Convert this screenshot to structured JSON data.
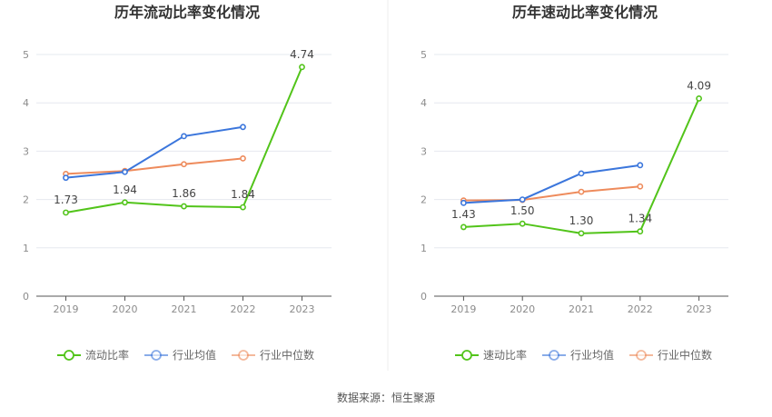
{
  "source": "数据来源：恒生聚源",
  "colors": {
    "company": "#52c41a",
    "industry_avg": "#3b76dc",
    "industry_median": "#ee8b5c"
  },
  "chart_data": [
    {
      "type": "line",
      "title": "历年流动比率变化情况",
      "categories": [
        "2019",
        "2020",
        "2021",
        "2022",
        "2023"
      ],
      "ylim": [
        0,
        5
      ],
      "yticks": [
        "0",
        "1",
        "2",
        "3",
        "4",
        "5"
      ],
      "grid": true,
      "legend_position": "bottom",
      "series": [
        {
          "name": "流动比率",
          "values": [
            1.73,
            1.94,
            1.86,
            1.84,
            4.74
          ],
          "labels": [
            "1.73",
            "1.94",
            "1.86",
            "1.84",
            "4.74"
          ]
        },
        {
          "name": "行业均值",
          "values": [
            2.45,
            2.57,
            3.31,
            3.5,
            null
          ]
        },
        {
          "name": "行业中位数",
          "values": [
            2.53,
            2.59,
            2.73,
            2.85,
            null
          ]
        }
      ]
    },
    {
      "type": "line",
      "title": "历年速动比率变化情况",
      "categories": [
        "2019",
        "2020",
        "2021",
        "2022",
        "2023"
      ],
      "ylim": [
        0,
        5
      ],
      "yticks": [
        "0",
        "1",
        "2",
        "3",
        "4",
        "5"
      ],
      "grid": true,
      "legend_position": "bottom",
      "series": [
        {
          "name": "速动比率",
          "values": [
            1.43,
            1.5,
            1.3,
            1.34,
            4.09
          ],
          "labels": [
            "1.43",
            "1.50",
            "1.30",
            "1.34",
            "4.09"
          ]
        },
        {
          "name": "行业均值",
          "values": [
            1.93,
            2.0,
            2.54,
            2.71,
            null
          ]
        },
        {
          "name": "行业中位数",
          "values": [
            1.98,
            1.99,
            2.16,
            2.27,
            null
          ]
        }
      ]
    }
  ]
}
